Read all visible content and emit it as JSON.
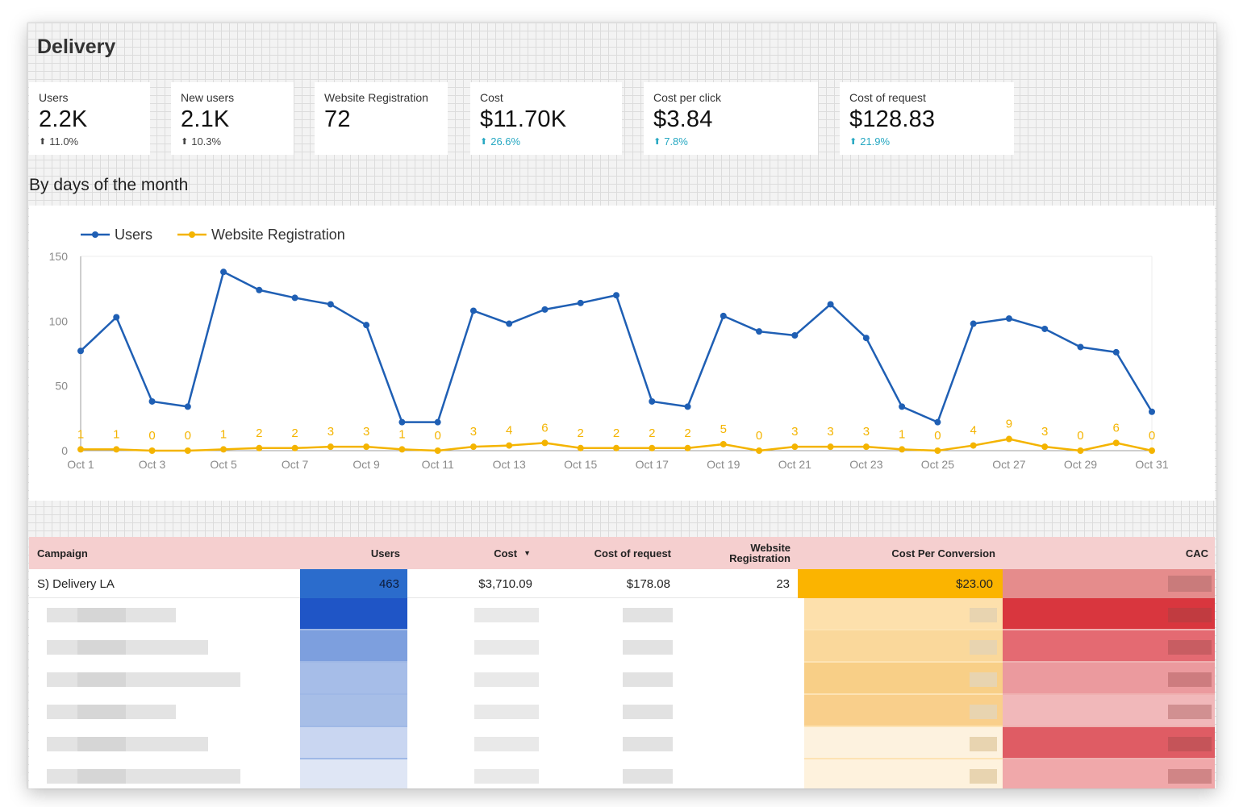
{
  "page": {
    "title": "Delivery"
  },
  "kpis": [
    {
      "label": "Users",
      "value": "2.2K",
      "change": "11.0%",
      "change_color": "grey"
    },
    {
      "label": "New users",
      "value": "2.1K",
      "change": "10.3%",
      "change_color": "grey"
    },
    {
      "label": "Website Registration",
      "value": "72",
      "change": "",
      "change_color": "none"
    },
    {
      "label": "Cost",
      "value": "$11.70K",
      "change": "26.6%",
      "change_color": "blue"
    },
    {
      "label": "Cost per click",
      "value": "$3.84",
      "change": "7.8%",
      "change_color": "blue"
    },
    {
      "label": "Cost of request",
      "value": "$128.83",
      "change": "21.9%",
      "change_color": "blue"
    }
  ],
  "section": {
    "title": "By days of the month"
  },
  "chart_data": {
    "type": "line",
    "title": "",
    "xlabel": "",
    "ylabel": "",
    "ylim": [
      0,
      150
    ],
    "y_ticks": [
      "0",
      "50",
      "100",
      "150"
    ],
    "x_tick_labels": [
      "Oct 1",
      "Oct 3",
      "Oct 5",
      "Oct 7",
      "Oct 9",
      "Oct 11",
      "Oct 13",
      "Oct 15",
      "Oct 17",
      "Oct 19",
      "Oct 21",
      "Oct 23",
      "Oct 25",
      "Oct 27",
      "Oct 29",
      "Oct 31"
    ],
    "legend_position": "top-left",
    "grid": false,
    "x": [
      "Oct 1",
      "Oct 2",
      "Oct 3",
      "Oct 4",
      "Oct 5",
      "Oct 6",
      "Oct 7",
      "Oct 8",
      "Oct 9",
      "Oct 10",
      "Oct 11",
      "Oct 12",
      "Oct 13",
      "Oct 14",
      "Oct 15",
      "Oct 16",
      "Oct 17",
      "Oct 18",
      "Oct 19",
      "Oct 20",
      "Oct 21",
      "Oct 22",
      "Oct 23",
      "Oct 24",
      "Oct 25",
      "Oct 26",
      "Oct 27",
      "Oct 28",
      "Oct 29",
      "Oct 30",
      "Oct 31"
    ],
    "series": [
      {
        "name": "Users",
        "color": "#1f5fb4",
        "values": [
          77,
          103,
          38,
          34,
          138,
          124,
          118,
          113,
          97,
          22,
          22,
          108,
          98,
          109,
          114,
          120,
          38,
          34,
          104,
          92,
          89,
          113,
          87,
          34,
          22,
          98,
          102,
          94,
          80,
          76,
          30
        ],
        "show_labels": false
      },
      {
        "name": "Website Registration",
        "color": "#f4b400",
        "values": [
          1,
          1,
          0,
          0,
          1,
          2,
          2,
          3,
          3,
          1,
          0,
          3,
          4,
          6,
          2,
          2,
          2,
          2,
          5,
          0,
          3,
          3,
          3,
          1,
          0,
          4,
          9,
          3,
          0,
          6,
          0
        ],
        "show_labels": true
      }
    ]
  },
  "table": {
    "headers": {
      "campaign": "Campaign",
      "users": "Users",
      "cost": "Cost",
      "cost_of_request": "Cost of request",
      "website_registration_line1": "Website",
      "website_registration_line2": "Registration",
      "cost_per_conversion": "Cost Per Conversion",
      "cac": "CAC"
    },
    "sort_indicator": "▼",
    "rows": [
      {
        "campaign": "S) Delivery LA",
        "users": "463",
        "cost": "$3,710.09",
        "cost_of_request": "$178.08",
        "website_registration": "23",
        "cost_per_conversion": "$23.00",
        "cac": ""
      }
    ],
    "colors": {
      "header_bg": "#f5cfcf",
      "users_bar": "#2b6ccc",
      "cost_per_conversion_bg": "#fbb400",
      "cac_bg": "#e58c8c"
    }
  }
}
